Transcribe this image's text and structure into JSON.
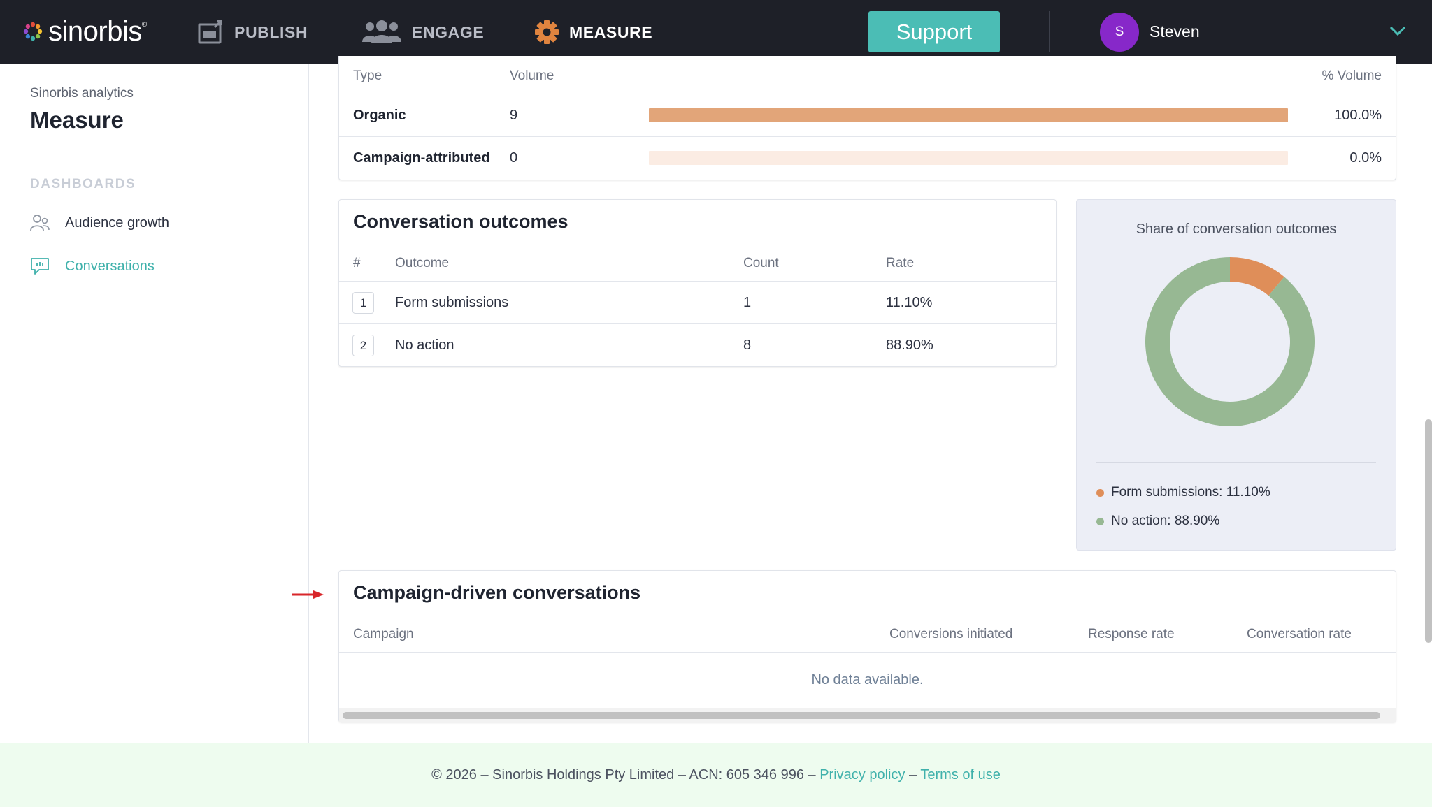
{
  "topbar": {
    "logo": "sinorbis",
    "logo_mark": "®",
    "nav": [
      {
        "label": "PUBLISH",
        "icon": "publish-icon"
      },
      {
        "label": "ENGAGE",
        "icon": "people-icon"
      },
      {
        "label": "MEASURE",
        "icon": "gear-icon",
        "active": true
      }
    ],
    "support_label": "Support",
    "user": {
      "initial": "S",
      "name": "Steven",
      "avatar_color": "#8728c9"
    }
  },
  "sidebar": {
    "subtitle": "Sinorbis analytics",
    "title": "Measure",
    "section_label": "DASHBOARDS",
    "items": [
      {
        "label": "Audience growth",
        "icon": "audience-icon"
      },
      {
        "label": "Conversations",
        "icon": "chat-icon",
        "active": true
      }
    ]
  },
  "volume_table": {
    "headers": {
      "type": "Type",
      "volume": "Volume",
      "pct": "% Volume"
    },
    "rows": [
      {
        "type": "Organic",
        "volume": "9",
        "pct_value": 100.0,
        "pct": "100.0%"
      },
      {
        "type": "Campaign-attributed",
        "volume": "0",
        "pct_value": 0.0,
        "pct": "0.0%"
      }
    ],
    "bar_color": "#e2a579",
    "track_color": "#fbece3"
  },
  "outcomes": {
    "title": "Conversation outcomes",
    "headers": {
      "num": "#",
      "outcome": "Outcome",
      "count": "Count",
      "rate": "Rate"
    },
    "rows": [
      {
        "num": "1",
        "outcome": "Form submissions",
        "count": "1",
        "rate": "11.10%"
      },
      {
        "num": "2",
        "outcome": "No action",
        "count": "8",
        "rate": "88.90%"
      }
    ]
  },
  "chart_data": {
    "type": "pie",
    "title": "Share of conversation outcomes",
    "donut": true,
    "categories": [
      "Form submissions",
      "No action"
    ],
    "values": [
      11.1,
      88.9
    ],
    "colors": [
      "#df8e59",
      "#97b893"
    ],
    "legend": [
      "Form submissions: 11.10%",
      "No action: 88.90%"
    ],
    "legend_position": "bottom-left"
  },
  "campaigns": {
    "title": "Campaign-driven conversations",
    "headers": {
      "campaign": "Campaign",
      "conversions": "Conversions initiated",
      "response": "Response rate",
      "conversation": "Conversation rate"
    },
    "empty": "No data available."
  },
  "footer": {
    "text": "© 2026 – Sinorbis Holdings Pty Limited – ACN: 605 346 996 – ",
    "privacy": "Privacy policy",
    "sep": " – ",
    "terms": "Terms of use"
  }
}
